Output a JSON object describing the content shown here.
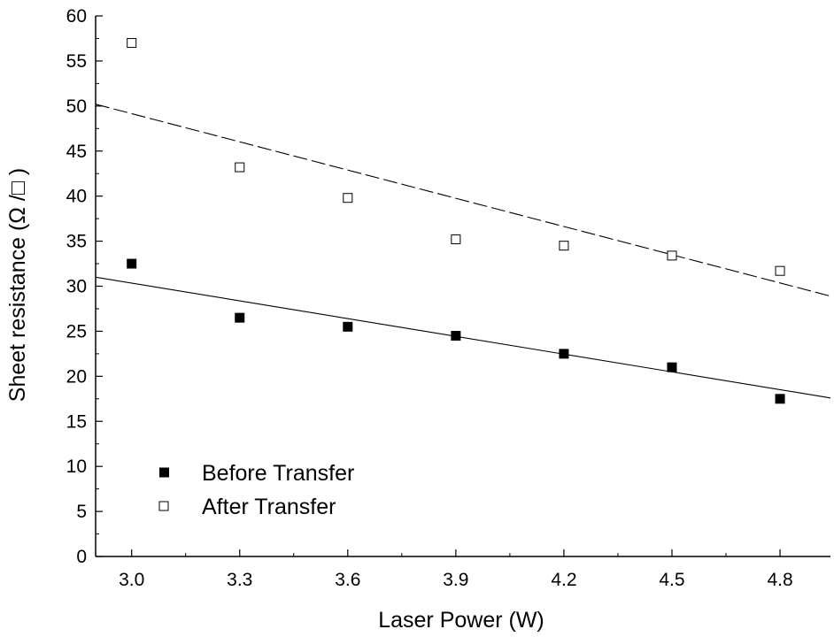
{
  "chart_data": {
    "type": "scatter",
    "xlabel": "Laser Power (W)",
    "ylabel": "Sheet resistance (Ω /□ )",
    "xlim": [
      2.9,
      4.94
    ],
    "ylim": [
      0,
      60
    ],
    "x_ticks": [
      3.0,
      3.3,
      3.6,
      3.9,
      4.2,
      4.5,
      4.8
    ],
    "x_tick_labels": [
      "3.0",
      "3.3",
      "3.6",
      "3.9",
      "4.2",
      "4.5",
      "4.8"
    ],
    "y_ticks": [
      0,
      5,
      10,
      15,
      20,
      25,
      30,
      35,
      40,
      45,
      50,
      55,
      60
    ],
    "y_tick_labels": [
      "0",
      "5",
      "10",
      "15",
      "20",
      "25",
      "30",
      "35",
      "40",
      "45",
      "50",
      "55",
      "60"
    ],
    "grid": false,
    "legend_position": "bottom-left",
    "series": [
      {
        "name": "Before Transfer",
        "marker": "filled-square",
        "color": "#000000",
        "x": [
          3.0,
          3.3,
          3.6,
          3.9,
          4.2,
          4.5,
          4.8
        ],
        "y": [
          32.5,
          26.5,
          25.5,
          24.5,
          22.5,
          21.0,
          17.5
        ],
        "fit": {
          "style": "solid",
          "x": [
            2.9,
            4.94
          ],
          "y": [
            31.0,
            17.6
          ]
        }
      },
      {
        "name": "After Transfer",
        "marker": "open-square",
        "color": "#000000",
        "x": [
          3.0,
          3.3,
          3.6,
          3.9,
          4.2,
          4.5,
          4.8
        ],
        "y": [
          57.0,
          43.2,
          39.8,
          35.2,
          34.5,
          33.4,
          31.7
        ],
        "fit": {
          "style": "dashed",
          "x": [
            2.9,
            4.94
          ],
          "y": [
            50.2,
            28.9
          ]
        }
      }
    ]
  }
}
